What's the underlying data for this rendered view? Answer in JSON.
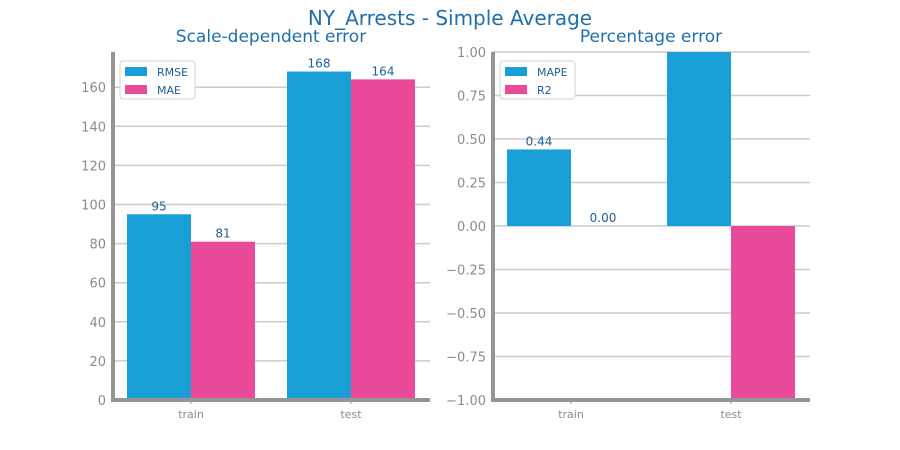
{
  "figure_title": "NY_Arrests - Simple Average",
  "chart_data": [
    {
      "type": "bar",
      "title": "Scale-dependent error",
      "categories": [
        "train",
        "test"
      ],
      "series": [
        {
          "name": "RMSE",
          "color": "#1a9ed6",
          "values": [
            95,
            168
          ],
          "labels": [
            "95",
            "168"
          ]
        },
        {
          "name": "MAE",
          "color": "#ea4a9a",
          "values": [
            81,
            164
          ],
          "labels": [
            "81",
            "164"
          ]
        }
      ],
      "ylim": [
        0,
        178
      ],
      "yticks": [
        0,
        20,
        40,
        60,
        80,
        100,
        120,
        140,
        160
      ],
      "ytick_labels": [
        "0",
        "20",
        "40",
        "60",
        "80",
        "100",
        "120",
        "140",
        "160"
      ],
      "grid": "horizontal",
      "legend": "top-left"
    },
    {
      "type": "bar",
      "title": "Percentage error",
      "categories": [
        "train",
        "test"
      ],
      "series": [
        {
          "name": "MAPE",
          "color": "#1a9ed6",
          "values": [
            0.44,
            1.0
          ],
          "labels": [
            "0.44",
            ""
          ]
        },
        {
          "name": "R2",
          "color": "#ea4a9a",
          "values": [
            0.0,
            -1.0
          ],
          "labels": [
            "0.00",
            ""
          ]
        }
      ],
      "ylim": [
        -1.0,
        1.0
      ],
      "yticks": [
        -1.0,
        -0.75,
        -0.5,
        -0.25,
        0.0,
        0.25,
        0.5,
        0.75,
        1.0
      ],
      "ytick_labels": [
        "−1.00",
        "−0.75",
        "−0.50",
        "−0.25",
        "0.00",
        "0.25",
        "0.50",
        "0.75",
        "1.00"
      ],
      "grid": "horizontal",
      "legend": "top-left"
    }
  ]
}
